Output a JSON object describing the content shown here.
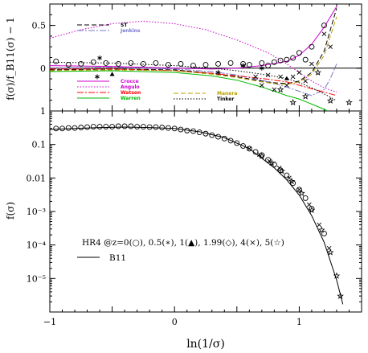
{
  "chart_data": [
    {
      "type": "line",
      "panel": "top",
      "ylabel": "f(σ)/f_B11(σ) − 1",
      "xlim": [
        -1,
        1.5
      ],
      "ylim": [
        -0.5,
        0.75
      ],
      "yticks": [
        -0.5,
        0,
        0.5
      ],
      "yticklabels": [
        "",
        "0",
        "0.5"
      ],
      "legend": [
        {
          "label": "ST",
          "color": "#000000",
          "dash": "6,3"
        },
        {
          "label": "Jenkins",
          "color": "#7777cc",
          "dash": "8,2,2,2"
        },
        {
          "label": "Crocce",
          "color": "#d000d0",
          "dash": ""
        },
        {
          "label": "Angulo",
          "color": "#cc00cc",
          "dash": "1.5,2"
        },
        {
          "label": "Watson",
          "color": "#ff0000",
          "dash": "8,2,2,2"
        },
        {
          "label": "Warren",
          "color": "#00bb00",
          "dash": ""
        },
        {
          "label": "Manera",
          "color": "#b8a000",
          "dash": "6,3"
        },
        {
          "label": "Tinker",
          "color": "#000000",
          "dash": "1.5,2"
        }
      ],
      "series": [
        {
          "name": "ST",
          "color": "#000000",
          "dash": "6,3",
          "x": [
            -1,
            -0.5,
            0,
            0.3,
            0.5,
            0.7,
            0.8,
            0.9,
            1.0,
            1.1,
            1.2,
            1.3
          ],
          "y": [
            -0.02,
            -0.01,
            -0.02,
            -0.06,
            -0.1,
            -0.15,
            -0.17,
            -0.18,
            -0.15,
            -0.05,
            0.2,
            0.7
          ]
        },
        {
          "name": "Jenkins",
          "color": "#7777cc",
          "dash": "8,2,2,2",
          "x": [
            -1,
            -0.5,
            0,
            0.3,
            0.5,
            0.7,
            0.9,
            1.0,
            1.1,
            1.2,
            1.25,
            1.3
          ],
          "y": [
            0.0,
            0.01,
            -0.01,
            -0.04,
            -0.08,
            -0.14,
            -0.22,
            -0.27,
            -0.32,
            -0.25,
            -0.12,
            0.05
          ]
        },
        {
          "name": "Crocce",
          "color": "#d000d0",
          "dash": "",
          "x": [
            -1,
            -0.5,
            0,
            0.3,
            0.5,
            0.7,
            0.9,
            1.0,
            1.1,
            1.2,
            1.3
          ],
          "y": [
            0.03,
            0.02,
            0.0,
            -0.01,
            0.0,
            0.03,
            0.08,
            0.15,
            0.28,
            0.48,
            0.72
          ]
        },
        {
          "name": "Angulo",
          "color": "#cc00cc",
          "dash": "1.5,2",
          "x": [
            -1,
            -0.75,
            -0.5,
            -0.25,
            0,
            0.25,
            0.5,
            0.75,
            0.9,
            1.0,
            1.1,
            1.2,
            1.3
          ],
          "y": [
            0.35,
            0.45,
            0.52,
            0.55,
            0.52,
            0.45,
            0.33,
            0.18,
            0.05,
            -0.05,
            -0.15,
            -0.23,
            -0.28
          ]
        },
        {
          "name": "Watson",
          "color": "#ff0000",
          "dash": "8,2,2,2",
          "x": [
            -1,
            -0.5,
            0,
            0.3,
            0.5,
            0.7,
            0.9,
            1.0,
            1.1,
            1.2,
            1.3
          ],
          "y": [
            -0.01,
            -0.01,
            -0.03,
            -0.06,
            -0.09,
            -0.12,
            -0.16,
            -0.2,
            -0.24,
            -0.28,
            -0.32
          ]
        },
        {
          "name": "Warren",
          "color": "#00bb00",
          "dash": "",
          "x": [
            -1,
            -0.5,
            0,
            0.3,
            0.5,
            0.7,
            0.8,
            0.9,
            1.0,
            1.1,
            1.2,
            1.3
          ],
          "y": [
            -0.04,
            -0.03,
            -0.05,
            -0.09,
            -0.14,
            -0.22,
            -0.27,
            -0.32,
            -0.36,
            -0.42,
            -0.48,
            -0.55
          ]
        },
        {
          "name": "Manera",
          "color": "#b8a000",
          "dash": "6,3",
          "x": [
            -1,
            -0.5,
            0,
            0.3,
            0.5,
            0.7,
            0.8,
            0.9,
            1.0,
            1.1,
            1.2,
            1.3
          ],
          "y": [
            -0.03,
            -0.02,
            -0.03,
            -0.07,
            -0.11,
            -0.16,
            -0.18,
            -0.19,
            -0.16,
            -0.07,
            0.15,
            0.6
          ]
        },
        {
          "name": "Tinker",
          "color": "#000000",
          "dash": "1.5,2",
          "x": [
            -1,
            -0.5,
            0,
            0.3,
            0.5,
            0.7,
            0.9,
            1.0,
            1.1,
            1.2,
            1.3
          ],
          "y": [
            0.07,
            0.06,
            0.03,
            0.0,
            -0.03,
            -0.07,
            -0.12,
            -0.17,
            -0.23,
            -0.3,
            -0.38
          ]
        }
      ],
      "points": [
        {
          "marker": "circle",
          "x": [
            -0.95,
            -0.85,
            -0.75,
            -0.65,
            -0.55,
            -0.45,
            -0.35,
            -0.25,
            -0.15,
            -0.05,
            0.05,
            0.15,
            0.25,
            0.35,
            0.45,
            0.55,
            0.6,
            0.7,
            0.75,
            0.8,
            0.85,
            0.9,
            0.95,
            1.0,
            1.05,
            1.1,
            1.2
          ],
          "y": [
            0.08,
            0.04,
            0.05,
            0.07,
            0.06,
            0.05,
            0.06,
            0.05,
            0.06,
            0.04,
            0.05,
            0.03,
            0.04,
            0.05,
            0.06,
            0.05,
            0.04,
            0.06,
            0.03,
            0.07,
            0.09,
            0.1,
            0.12,
            0.18,
            0.1,
            0.25,
            0.5
          ]
        },
        {
          "marker": "asterisk",
          "x": [
            -0.6,
            -0.62,
            0.35,
            0.55,
            0.7
          ],
          "y": [
            0.12,
            -0.1,
            -0.05,
            0.03,
            0.0
          ]
        },
        {
          "marker": "triangle",
          "x": [
            -0.5,
            0.9
          ],
          "y": [
            -0.07,
            -0.12
          ]
        },
        {
          "marker": "cross",
          "x": [
            0.65,
            0.7,
            0.75,
            0.8,
            0.85,
            0.9,
            0.95,
            1.0,
            1.05,
            1.1,
            1.2,
            1.25
          ],
          "y": [
            -0.1,
            -0.2,
            -0.08,
            -0.25,
            -0.1,
            -0.2,
            -0.1,
            -0.05,
            -0.15,
            0.05,
            0.4,
            0.25
          ]
        },
        {
          "marker": "star",
          "x": [
            0.85,
            0.95,
            1.05,
            1.15,
            1.25,
            1.4
          ],
          "y": [
            -0.25,
            -0.4,
            -0.33,
            -0.05,
            -0.38,
            -0.4
          ]
        }
      ]
    },
    {
      "type": "line",
      "panel": "bottom",
      "xlabel": "ln(1/σ)",
      "ylabel": "f(σ)",
      "yscale": "log",
      "xlim": [
        -1,
        1.5
      ],
      "ylim": [
        1e-06,
        1
      ],
      "xticks": [
        -1,
        0,
        1
      ],
      "xticklabels": [
        "−1",
        "0",
        "1"
      ],
      "yticks": [
        1,
        0.1,
        0.01,
        0.001,
        0.0001,
        1e-05
      ],
      "yticklabels": [
        "1",
        "0.1",
        "0.01",
        "10⁻³",
        "10⁻⁴",
        "10⁻⁵"
      ],
      "legend": {
        "points_label": "HR4 @z=0(○), 0.5(∗), 1(▲), 1.99(◇), 4(×), 5(☆)",
        "line_label": "B11"
      },
      "series": [
        {
          "name": "B11",
          "color": "#000000",
          "x": [
            -1,
            -0.8,
            -0.6,
            -0.4,
            -0.2,
            0,
            0.2,
            0.4,
            0.6,
            0.8,
            0.9,
            1.0,
            1.1,
            1.2,
            1.3,
            1.35
          ],
          "y": [
            0.28,
            0.3,
            0.32,
            0.33,
            0.32,
            0.3,
            0.24,
            0.16,
            0.075,
            0.02,
            0.0088,
            0.0031,
            0.00075,
            0.00012,
            9e-06,
            1.7e-06
          ]
        }
      ],
      "points": [
        {
          "marker": "circle",
          "x": [
            -0.95,
            -0.9,
            -0.85,
            -0.8,
            -0.75,
            -0.7,
            -0.65,
            -0.6,
            -0.55,
            -0.5,
            -0.45,
            -0.4,
            -0.35,
            -0.3,
            -0.25,
            -0.2,
            -0.15,
            -0.1,
            -0.05,
            0.0,
            0.05,
            0.1,
            0.15,
            0.2,
            0.25,
            0.3,
            0.35,
            0.4,
            0.45,
            0.5,
            0.55,
            0.6,
            0.65,
            0.7,
            0.75,
            0.8,
            0.85,
            0.9,
            0.95,
            1.0,
            1.05,
            1.1,
            1.2
          ],
          "y": [
            0.3,
            0.3,
            0.31,
            0.31,
            0.32,
            0.33,
            0.34,
            0.34,
            0.34,
            0.34,
            0.35,
            0.35,
            0.35,
            0.34,
            0.34,
            0.33,
            0.33,
            0.32,
            0.31,
            0.3,
            0.28,
            0.26,
            0.25,
            0.23,
            0.21,
            0.19,
            0.17,
            0.15,
            0.13,
            0.11,
            0.09,
            0.075,
            0.06,
            0.048,
            0.035,
            0.025,
            0.017,
            0.012,
            0.007,
            0.0045,
            0.0025,
            0.0012,
            0.00022
          ]
        },
        {
          "marker": "star",
          "x": [
            0.7,
            0.78,
            0.86,
            0.94,
            1.02,
            1.1,
            1.18,
            1.25,
            1.3,
            1.33
          ],
          "y": [
            0.045,
            0.028,
            0.016,
            0.008,
            0.0035,
            0.0011,
            0.00028,
            6e-05,
            1.2e-05,
            3e-06
          ]
        },
        {
          "marker": "cross",
          "x": [
            0.6,
            0.68,
            0.76,
            0.84,
            0.92,
            1.0,
            1.08,
            1.16,
            1.24
          ],
          "y": [
            0.075,
            0.05,
            0.032,
            0.02,
            0.01,
            0.0045,
            0.0016,
            0.0004,
            8e-05
          ]
        }
      ]
    }
  ]
}
